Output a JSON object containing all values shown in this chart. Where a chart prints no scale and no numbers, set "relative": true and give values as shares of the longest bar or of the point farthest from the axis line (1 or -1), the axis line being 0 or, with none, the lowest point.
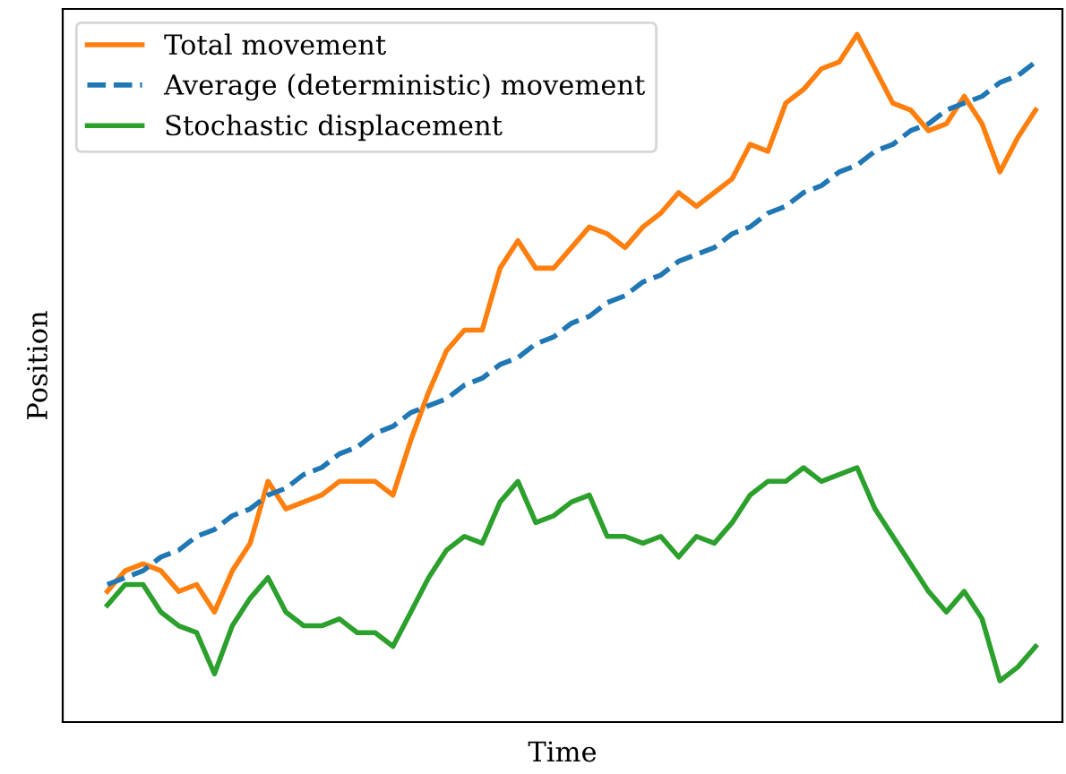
{
  "chart_data": {
    "type": "line",
    "relative": true,
    "xlabel": "Time",
    "ylabel": "Position",
    "legend": "top left",
    "grid": false,
    "categories": [
      null,
      null,
      null,
      null,
      null,
      null,
      null,
      null,
      null,
      null,
      null,
      null,
      null,
      null,
      null,
      null,
      null,
      null,
      null,
      null,
      null,
      null,
      null,
      null,
      null,
      null,
      null,
      null,
      null,
      null,
      null,
      null,
      null,
      null,
      null,
      null,
      null,
      null,
      null,
      null,
      null,
      null,
      null,
      null,
      null,
      null,
      null,
      null,
      null,
      null,
      null,
      null,
      null
    ],
    "series": [
      {
        "name": "Total movement",
        "color": "#ff7f0e",
        "line_style": "solid",
        "values": [
          0.19,
          0.22,
          0.23,
          0.22,
          0.19,
          0.2,
          0.16,
          0.22,
          0.26,
          0.35,
          0.31,
          0.32,
          0.33,
          0.35,
          0.35,
          0.35,
          0.33,
          0.41,
          0.48,
          0.54,
          0.57,
          0.57,
          0.66,
          0.7,
          0.66,
          0.66,
          0.69,
          0.72,
          0.71,
          0.69,
          0.72,
          0.74,
          0.77,
          0.75,
          0.77,
          0.79,
          0.84,
          0.83,
          0.9,
          0.92,
          0.95,
          0.96,
          1.0,
          0.95,
          0.9,
          0.89,
          0.86,
          0.87,
          0.91,
          0.87,
          0.8,
          0.85,
          0.89
        ]
      },
      {
        "name": "Average (deterministic) movement",
        "color": "#1f77b4",
        "line_style": "dashed",
        "values": [
          0.2,
          0.21,
          0.22,
          0.24,
          0.25,
          0.27,
          0.28,
          0.3,
          0.31,
          0.33,
          0.34,
          0.36,
          0.37,
          0.39,
          0.4,
          0.42,
          0.43,
          0.45,
          0.46,
          0.47,
          0.49,
          0.5,
          0.52,
          0.53,
          0.55,
          0.56,
          0.58,
          0.59,
          0.61,
          0.62,
          0.64,
          0.65,
          0.67,
          0.68,
          0.69,
          0.71,
          0.72,
          0.74,
          0.75,
          0.77,
          0.78,
          0.8,
          0.81,
          0.83,
          0.84,
          0.86,
          0.87,
          0.89,
          0.9,
          0.91,
          0.93,
          0.94,
          0.96
        ]
      },
      {
        "name": "Stochastic displacement",
        "color": "#2ca02c",
        "line_style": "solid",
        "values": [
          0.17,
          0.2,
          0.2,
          0.16,
          0.14,
          0.13,
          0.07,
          0.14,
          0.18,
          0.21,
          0.16,
          0.14,
          0.14,
          0.15,
          0.13,
          0.13,
          0.11,
          0.16,
          0.21,
          0.25,
          0.27,
          0.26,
          0.32,
          0.35,
          0.29,
          0.3,
          0.32,
          0.33,
          0.27,
          0.27,
          0.26,
          0.27,
          0.24,
          0.27,
          0.26,
          0.29,
          0.33,
          0.35,
          0.35,
          0.37,
          0.35,
          0.36,
          0.37,
          0.31,
          0.27,
          0.23,
          0.19,
          0.16,
          0.19,
          0.15,
          0.06,
          0.08,
          0.11
        ]
      }
    ]
  }
}
